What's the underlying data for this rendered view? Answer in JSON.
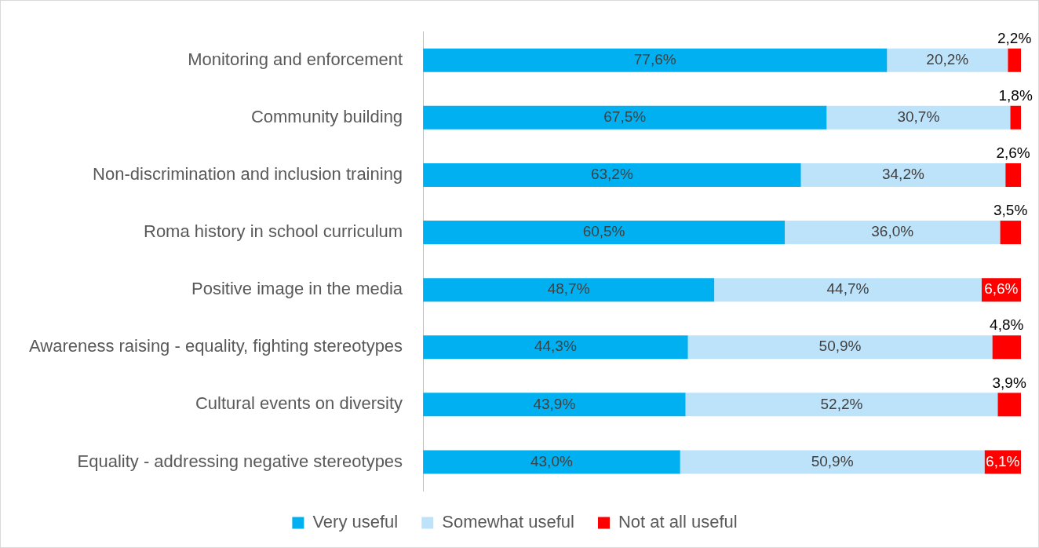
{
  "chart_data": {
    "type": "bar",
    "orientation": "horizontal",
    "stacked": true,
    "legend": "bottom",
    "tick_labels": "y",
    "categories": [
      "Monitoring and enforcement",
      "Community building",
      "Non-discrimination and inclusion training",
      "Roma history in school curriculum",
      "Positive image in the media",
      "Awareness raising - equality, fighting stereotypes",
      "Cultural events on diversity",
      "Equality - addressing negative stereotypes"
    ],
    "series": [
      {
        "name": "Very useful",
        "color": "#00b0f0",
        "values": [
          77.6,
          67.5,
          63.2,
          60.5,
          48.7,
          44.3,
          43.9,
          43.0
        ],
        "value_labels": [
          "77,6%",
          "67,5%",
          "63,2%",
          "60,5%",
          "48,7%",
          "44,3%",
          "43,9%",
          "43,0%"
        ]
      },
      {
        "name": "Somewhat useful",
        "color": "#bde3fb",
        "values": [
          20.2,
          30.7,
          34.2,
          36.0,
          44.7,
          50.9,
          52.2,
          50.9
        ],
        "value_labels": [
          "20,2%",
          "30,7%",
          "34,2%",
          "36,0%",
          "44,7%",
          "50,9%",
          "52,2%",
          "50,9%"
        ]
      },
      {
        "name": "Not at all useful",
        "color": "#ff0000",
        "values": [
          2.2,
          1.8,
          2.6,
          3.5,
          6.6,
          4.8,
          3.9,
          6.1
        ],
        "value_labels": [
          "2,2%",
          "1,8%",
          "2,6%",
          "3,5%",
          "6,6%",
          "4,8%",
          "3,9%",
          "6,1%"
        ]
      }
    ]
  }
}
